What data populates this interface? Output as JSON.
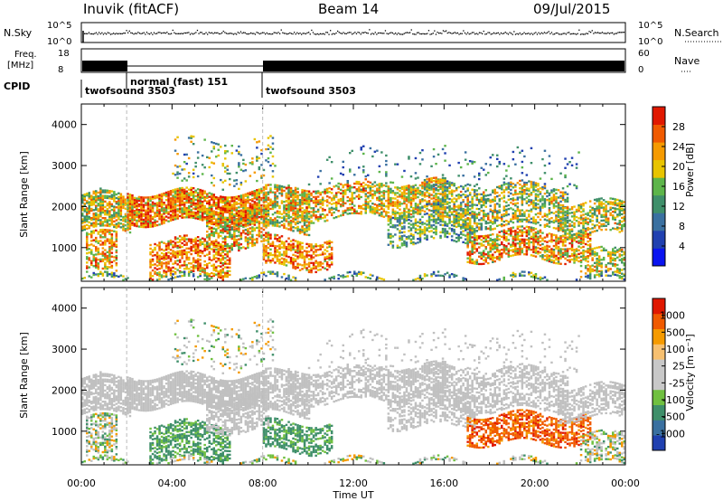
{
  "header": {
    "station": "Inuvik (fitACF)",
    "beam": "Beam 14",
    "date": "09/Jul/2015"
  },
  "strip_labels": {
    "nsky": "N.Sky",
    "nsky_ticks": [
      "10^5",
      "10^0"
    ],
    "nsearch": "N.Search",
    "nsearch_ticks": [
      "10^5",
      "10^0"
    ],
    "freq_line1": "Freq.",
    "freq_line2": "[MHz]",
    "freq_ticks": [
      "18",
      "8"
    ],
    "nave": "Nave",
    "nave_ticks": [
      "60",
      "0"
    ],
    "cpid": "CPID",
    "cpid_segments": [
      {
        "label": "twofsound 3503",
        "start_hour": 0
      },
      {
        "label": "normal (fast) 151",
        "start_hour": 2
      },
      {
        "label": "twofsound 3503",
        "start_hour": 8
      }
    ]
  },
  "colors": {
    "power_scale": [
      "#0a14f0",
      "#2040b0",
      "#3a70a0",
      "#3f8f6a",
      "#5db54a",
      "#e8c400",
      "#f59a00",
      "#f05a00",
      "#e01800"
    ],
    "velocity_scale": [
      "#e01800",
      "#f05a00",
      "#f59a00",
      "#f7c070",
      "#c8c8c8",
      "#c8c8c8",
      "#70c040",
      "#3f8f6a",
      "#3a70a0",
      "#2040b0"
    ],
    "ground_scatter": "#c0c0c0"
  },
  "chart_data": [
    {
      "type": "heatmap",
      "panel": "power",
      "ylabel": "Slant Range [km]",
      "ylim": [
        180,
        4500
      ],
      "yticks": [
        "1000",
        "2000",
        "3000",
        "4000"
      ],
      "xlim_hours": [
        0,
        24
      ],
      "colorbar_label": "Power [dB]",
      "colorbar_ticks": [
        "4",
        "8",
        "12",
        "16",
        "20",
        "24",
        "28"
      ],
      "colorbar_range": [
        0,
        30
      ]
    },
    {
      "type": "heatmap",
      "panel": "velocity",
      "ylabel": "Slant Range [km]",
      "ylim": [
        180,
        4500
      ],
      "yticks": [
        "1000",
        "2000",
        "3000",
        "4000"
      ],
      "xlim_hours": [
        0,
        24
      ],
      "xticks": [
        "00:00",
        "04:00",
        "08:00",
        "12:00",
        "16:00",
        "20:00",
        "00:00"
      ],
      "xlabel": "Time UT",
      "colorbar_label": "Velocity [m s⁻¹]",
      "colorbar_ticks": [
        "1000",
        "500",
        "100",
        "25",
        "-25",
        "-100",
        "-500",
        "-1000"
      ]
    }
  ]
}
